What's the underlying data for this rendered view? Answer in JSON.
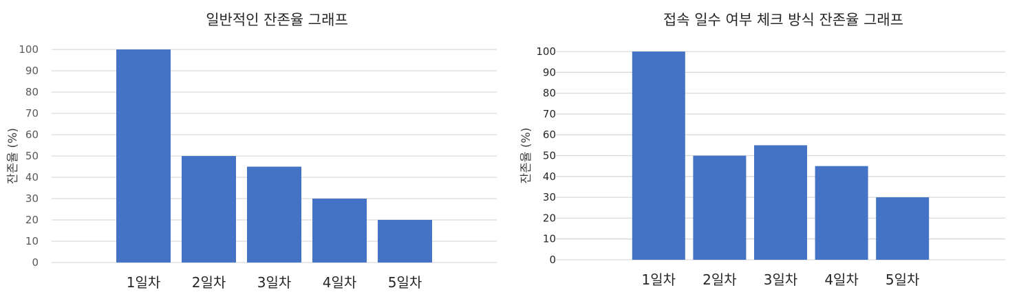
{
  "chart_data": [
    {
      "type": "bar",
      "title": "일반적인 잔존율 그래프",
      "xlabel": "",
      "ylabel": "잔존율 (%)",
      "categories": [
        "1일차",
        "2일차",
        "3일차",
        "4일차",
        "5일차"
      ],
      "values": [
        100,
        50,
        45,
        30,
        20
      ],
      "ylim": [
        0,
        100
      ],
      "yticks": [
        "0",
        "10",
        "20",
        "30",
        "40",
        "50",
        "60",
        "70",
        "80",
        "90",
        "100"
      ],
      "grid": true,
      "bar_color": "#4472C4"
    },
    {
      "type": "bar",
      "title": "접속 일수 여부 체크 방식 잔존율 그래프",
      "xlabel": "",
      "ylabel": "잔존율 (%)",
      "categories": [
        "1일차",
        "2일차",
        "3일차",
        "4일차",
        "5일차"
      ],
      "values": [
        100,
        50,
        55,
        45,
        30
      ],
      "ylim": [
        0,
        100
      ],
      "yticks": [
        "0",
        "10",
        "20",
        "30",
        "40",
        "50",
        "60",
        "70",
        "80",
        "90",
        "100"
      ],
      "grid": true,
      "bar_color": "#4472C4"
    }
  ]
}
